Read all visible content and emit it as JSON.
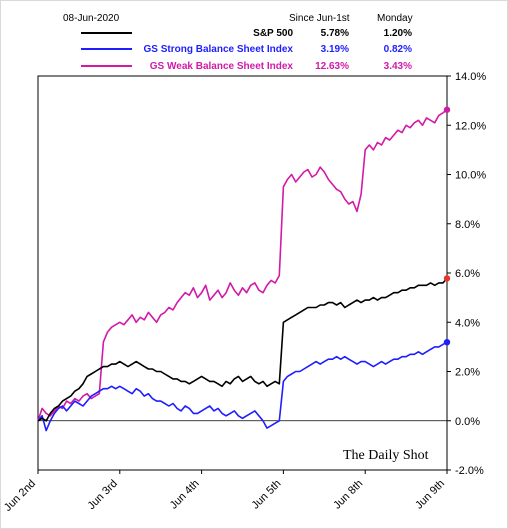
{
  "chart_data": {
    "type": "line",
    "date_label": "08-Jun-2020",
    "legend_headers": {
      "since": "Since Jun-1st",
      "day": "Monday"
    },
    "series": [
      {
        "name": "S&P 500",
        "color": "#000000",
        "since": "5.78%",
        "day": "1.20%",
        "x": [
          0,
          0.05,
          0.1,
          0.15,
          0.2,
          0.25,
          0.3,
          0.35,
          0.4,
          0.45,
          0.5,
          0.55,
          0.6,
          0.65,
          0.7,
          0.75,
          0.8,
          0.85,
          0.9,
          0.95,
          1.0,
          1.05,
          1.1,
          1.15,
          1.2,
          1.25,
          1.3,
          1.35,
          1.4,
          1.45,
          1.5,
          1.55,
          1.6,
          1.65,
          1.7,
          1.75,
          1.8,
          1.85,
          1.9,
          1.95,
          2.0,
          2.05,
          2.1,
          2.15,
          2.2,
          2.25,
          2.3,
          2.35,
          2.4,
          2.45,
          2.5,
          2.55,
          2.6,
          2.65,
          2.7,
          2.75,
          2.8,
          2.85,
          2.9,
          2.95,
          3.0,
          3.05,
          3.1,
          3.15,
          3.2,
          3.25,
          3.3,
          3.35,
          3.4,
          3.45,
          3.5,
          3.55,
          3.6,
          3.65,
          3.7,
          3.75,
          3.8,
          3.85,
          3.9,
          3.95,
          4.0,
          4.05,
          4.1,
          4.15,
          4.2,
          4.25,
          4.3,
          4.35,
          4.4,
          4.45,
          4.5,
          4.55,
          4.6,
          4.65,
          4.7,
          4.75,
          4.8,
          4.85,
          4.9,
          4.95,
          5.0
        ],
        "y": [
          0.0,
          0.1,
          0.0,
          0.3,
          0.5,
          0.6,
          0.8,
          0.9,
          1.0,
          1.2,
          1.3,
          1.5,
          1.8,
          1.9,
          2.0,
          2.1,
          2.2,
          2.2,
          2.3,
          2.3,
          2.4,
          2.3,
          2.2,
          2.3,
          2.4,
          2.3,
          2.2,
          2.1,
          2.1,
          2.0,
          2.0,
          1.9,
          1.8,
          1.7,
          1.7,
          1.6,
          1.6,
          1.5,
          1.6,
          1.7,
          1.8,
          1.7,
          1.6,
          1.6,
          1.5,
          1.4,
          1.6,
          1.5,
          1.7,
          1.8,
          1.6,
          1.7,
          1.8,
          1.6,
          1.5,
          1.6,
          1.4,
          1.5,
          1.6,
          1.5,
          4.0,
          4.1,
          4.2,
          4.3,
          4.4,
          4.5,
          4.6,
          4.6,
          4.6,
          4.7,
          4.7,
          4.8,
          4.8,
          4.7,
          4.8,
          4.6,
          4.7,
          4.8,
          4.9,
          4.8,
          4.9,
          4.9,
          5.0,
          4.9,
          5.0,
          5.0,
          5.1,
          5.2,
          5.2,
          5.3,
          5.3,
          5.4,
          5.4,
          5.5,
          5.5,
          5.5,
          5.6,
          5.5,
          5.6,
          5.6,
          5.78
        ],
        "end_marker": "#e8342a"
      },
      {
        "name": "GS Strong Balance Sheet Index",
        "color": "#1e1eff",
        "since": "3.19%",
        "day": "0.82%",
        "x": [
          0,
          0.05,
          0.1,
          0.15,
          0.2,
          0.25,
          0.3,
          0.35,
          0.4,
          0.45,
          0.5,
          0.55,
          0.6,
          0.65,
          0.7,
          0.75,
          0.8,
          0.85,
          0.9,
          0.95,
          1.0,
          1.05,
          1.1,
          1.15,
          1.2,
          1.25,
          1.3,
          1.35,
          1.4,
          1.45,
          1.5,
          1.55,
          1.6,
          1.65,
          1.7,
          1.75,
          1.8,
          1.85,
          1.9,
          1.95,
          2.0,
          2.05,
          2.1,
          2.15,
          2.2,
          2.25,
          2.3,
          2.35,
          2.4,
          2.45,
          2.5,
          2.55,
          2.6,
          2.65,
          2.7,
          2.75,
          2.8,
          2.85,
          2.9,
          2.95,
          3.0,
          3.05,
          3.1,
          3.15,
          3.2,
          3.25,
          3.3,
          3.35,
          3.4,
          3.45,
          3.5,
          3.55,
          3.6,
          3.65,
          3.7,
          3.75,
          3.8,
          3.85,
          3.9,
          3.95,
          4.0,
          4.05,
          4.1,
          4.15,
          4.2,
          4.25,
          4.3,
          4.35,
          4.4,
          4.45,
          4.5,
          4.55,
          4.6,
          4.65,
          4.7,
          4.75,
          4.8,
          4.85,
          4.9,
          4.95,
          5.0
        ],
        "y": [
          0.0,
          0.2,
          -0.4,
          0.0,
          0.3,
          0.5,
          0.6,
          0.4,
          0.6,
          0.8,
          0.7,
          0.6,
          0.8,
          1.0,
          1.1,
          1.2,
          1.3,
          1.3,
          1.4,
          1.3,
          1.4,
          1.3,
          1.2,
          1.1,
          1.3,
          1.2,
          1.0,
          1.1,
          0.9,
          0.8,
          0.8,
          0.7,
          0.6,
          0.7,
          0.5,
          0.4,
          0.6,
          0.5,
          0.3,
          0.3,
          0.4,
          0.5,
          0.6,
          0.4,
          0.5,
          0.3,
          0.2,
          0.3,
          0.4,
          0.2,
          0.1,
          0.2,
          0.3,
          0.4,
          0.2,
          0.0,
          -0.3,
          -0.2,
          -0.1,
          0.0,
          1.6,
          1.8,
          1.9,
          2.0,
          2.0,
          2.1,
          2.2,
          2.3,
          2.4,
          2.3,
          2.4,
          2.5,
          2.5,
          2.6,
          2.5,
          2.6,
          2.5,
          2.4,
          2.3,
          2.4,
          2.4,
          2.3,
          2.2,
          2.3,
          2.4,
          2.3,
          2.4,
          2.5,
          2.5,
          2.6,
          2.6,
          2.7,
          2.7,
          2.8,
          2.7,
          2.8,
          2.9,
          3.0,
          3.0,
          3.1,
          3.19
        ],
        "end_marker": "#1e1eff"
      },
      {
        "name": "GS Weak Balance Sheet Index",
        "color": "#d21aa8",
        "since": "12.63%",
        "day": "3.43%",
        "x": [
          0,
          0.05,
          0.1,
          0.15,
          0.2,
          0.25,
          0.3,
          0.35,
          0.4,
          0.45,
          0.5,
          0.55,
          0.6,
          0.65,
          0.7,
          0.75,
          0.8,
          0.85,
          0.9,
          0.95,
          1.0,
          1.05,
          1.1,
          1.15,
          1.2,
          1.25,
          1.3,
          1.35,
          1.4,
          1.45,
          1.5,
          1.55,
          1.6,
          1.65,
          1.7,
          1.75,
          1.8,
          1.85,
          1.9,
          1.95,
          2.0,
          2.05,
          2.1,
          2.15,
          2.2,
          2.25,
          2.3,
          2.35,
          2.4,
          2.45,
          2.5,
          2.55,
          2.6,
          2.65,
          2.7,
          2.75,
          2.8,
          2.85,
          2.9,
          2.95,
          3.0,
          3.05,
          3.1,
          3.15,
          3.2,
          3.25,
          3.3,
          3.35,
          3.4,
          3.45,
          3.5,
          3.55,
          3.6,
          3.65,
          3.7,
          3.75,
          3.8,
          3.85,
          3.9,
          3.95,
          4.0,
          4.05,
          4.1,
          4.15,
          4.2,
          4.25,
          4.3,
          4.35,
          4.4,
          4.45,
          4.5,
          4.55,
          4.6,
          4.65,
          4.7,
          4.75,
          4.8,
          4.85,
          4.9,
          4.95,
          5.0
        ],
        "y": [
          0.0,
          0.5,
          0.3,
          0.2,
          0.4,
          0.6,
          0.5,
          0.8,
          0.7,
          0.9,
          0.8,
          1.0,
          1.1,
          0.9,
          1.0,
          1.1,
          3.2,
          3.6,
          3.8,
          3.9,
          4.0,
          3.9,
          4.1,
          4.3,
          4.0,
          4.2,
          4.1,
          4.4,
          4.2,
          4.0,
          4.3,
          4.4,
          4.6,
          4.5,
          4.8,
          5.0,
          5.2,
          5.1,
          5.4,
          5.0,
          5.2,
          5.5,
          4.9,
          5.1,
          5.3,
          5.0,
          5.2,
          5.6,
          5.3,
          5.1,
          5.4,
          5.2,
          5.5,
          5.6,
          5.3,
          5.2,
          5.5,
          5.7,
          5.6,
          5.9,
          9.5,
          9.8,
          10.0,
          9.7,
          9.9,
          10.1,
          10.2,
          9.9,
          10.0,
          10.3,
          10.1,
          9.8,
          9.6,
          9.4,
          9.3,
          9.0,
          8.8,
          8.9,
          8.5,
          9.2,
          11.0,
          11.2,
          11.0,
          11.3,
          11.2,
          11.5,
          11.4,
          11.6,
          11.8,
          11.7,
          12.0,
          11.9,
          12.1,
          12.2,
          12.0,
          12.3,
          12.2,
          12.1,
          12.4,
          12.5,
          12.63
        ],
        "end_marker": "#d21aa8"
      }
    ],
    "x_ticks": [
      "Jun 2nd",
      "Jun 3rd",
      "Jun 4th",
      "Jun 5th",
      "Jun 8th",
      "Jun 9th"
    ],
    "y_ticks": [
      "-2.0%",
      "0.0%",
      "2.0%",
      "4.0%",
      "6.0%",
      "8.0%",
      "10.0%",
      "12.0%",
      "14.0%"
    ],
    "ylim": [
      -2,
      14
    ],
    "watermark": "The Daily Shot"
  }
}
